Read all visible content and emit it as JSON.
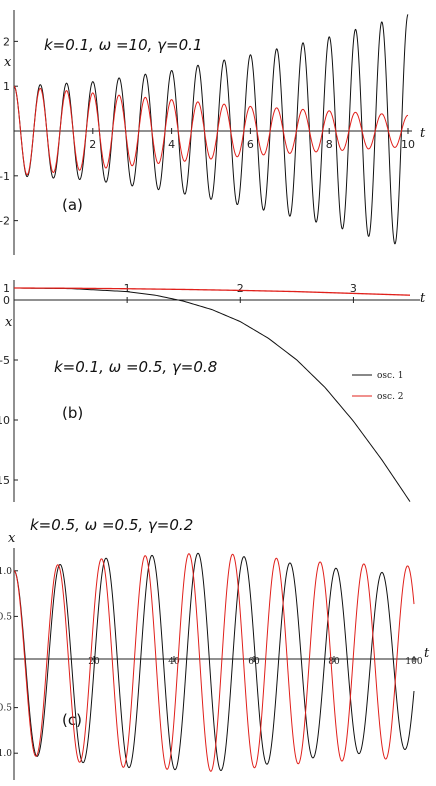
{
  "chart_data": [
    {
      "type": "line",
      "panel_label": "(a)",
      "annotation": "k=0.1, ω =10, γ=0.1",
      "xlabel": "t",
      "ylabel": "x",
      "xlim": [
        0,
        10
      ],
      "ylim": [
        -2.7,
        2.7
      ],
      "xticks": [
        2,
        4,
        6,
        8,
        10
      ],
      "yticks": [
        -2,
        -1,
        1,
        2
      ],
      "grid": false,
      "series": [
        {
          "color": "#111111",
          "model": "growing",
          "amplitude_t": [
            0,
            2,
            4,
            6,
            8,
            10
          ],
          "amplitude": [
            1.0,
            1.1,
            1.35,
            1.7,
            2.1,
            2.6
          ],
          "period": 0.6667,
          "phase": 0
        },
        {
          "color": "#e0201b",
          "model": "decaying",
          "amplitude_t": [
            0,
            2,
            4,
            6,
            8,
            10
          ],
          "amplitude": [
            1.0,
            0.85,
            0.7,
            0.55,
            0.45,
            0.35
          ],
          "period": 0.6667,
          "phase": 0
        }
      ]
    },
    {
      "type": "line",
      "panel_label": "(b)",
      "annotation": "k=0.1, ω  =0.5, γ=0.8",
      "xlabel": "t",
      "ylabel": "x",
      "xlim": [
        0,
        3.5
      ],
      "ylim": [
        -17,
        1
      ],
      "xticks": [
        1,
        2,
        3
      ],
      "yticks": [
        1,
        0,
        -5,
        -10,
        -15
      ],
      "grid": false,
      "legend": {
        "position": "right",
        "entries": [
          "osc. 1",
          "osc. 2"
        ]
      },
      "series": [
        {
          "name": "osc. 1",
          "color": "#111111",
          "x": [
            0,
            0.5,
            1.0,
            1.25,
            1.5,
            1.75,
            2.0,
            2.25,
            2.5,
            2.75,
            3.0,
            3.25,
            3.5
          ],
          "y": [
            1.0,
            0.95,
            0.7,
            0.4,
            -0.1,
            -0.8,
            -1.8,
            -3.2,
            -5.0,
            -7.3,
            -10.1,
            -13.3,
            -16.8
          ]
        },
        {
          "name": "osc. 2",
          "color": "#e0201b",
          "x": [
            0,
            0.5,
            1.0,
            1.5,
            2.0,
            2.5,
            3.0,
            3.5
          ],
          "y": [
            1.0,
            0.98,
            0.94,
            0.88,
            0.8,
            0.7,
            0.55,
            0.4
          ]
        }
      ]
    },
    {
      "type": "line",
      "panel_label": "(c)",
      "annotation": "k=0.5, ω  =0.5, γ=0.2",
      "xlabel": "t",
      "ylabel": "x",
      "xlim": [
        0,
        100
      ],
      "ylim": [
        -1.25,
        1.25
      ],
      "xticks": [
        20,
        40,
        60,
        80,
        100
      ],
      "yticks": [
        1.0,
        0.5,
        -0.5,
        -1.0
      ],
      "grid": false,
      "series": [
        {
          "color": "#111111",
          "model": "beat",
          "envelope_t": [
            0,
            25,
            50,
            75,
            100
          ],
          "envelope": [
            1.0,
            1.15,
            1.2,
            1.05,
            0.95
          ],
          "period": 11.5,
          "phase": 0
        },
        {
          "color": "#e0201b",
          "model": "beat",
          "envelope_t": [
            0,
            25,
            50,
            75,
            100
          ],
          "envelope": [
            1.0,
            1.15,
            1.2,
            1.1,
            1.05
          ],
          "period": 11.0,
          "phase": 0.35
        }
      ]
    }
  ]
}
